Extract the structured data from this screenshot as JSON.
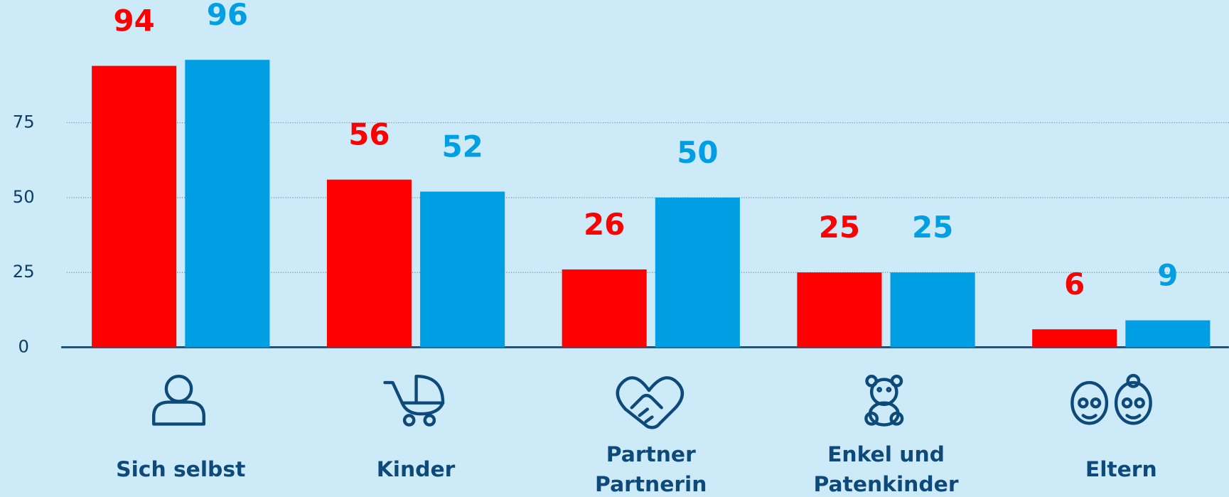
{
  "chart_data": {
    "type": "bar",
    "categories": [
      [
        "Sich selbst"
      ],
      [
        "Kinder"
      ],
      [
        "Partner",
        "Partnerin"
      ],
      [
        "Enkel und",
        "Patenkinder"
      ],
      [
        "Eltern"
      ]
    ],
    "series": [
      {
        "color": "#ff0000",
        "values": [
          94,
          56,
          26,
          25,
          6
        ]
      },
      {
        "color": "#009fe3",
        "values": [
          96,
          52,
          50,
          25,
          9
        ]
      }
    ],
    "ylim": [
      0,
      116
    ],
    "yticks": [
      0,
      25,
      50,
      75
    ],
    "grid": true
  }
}
